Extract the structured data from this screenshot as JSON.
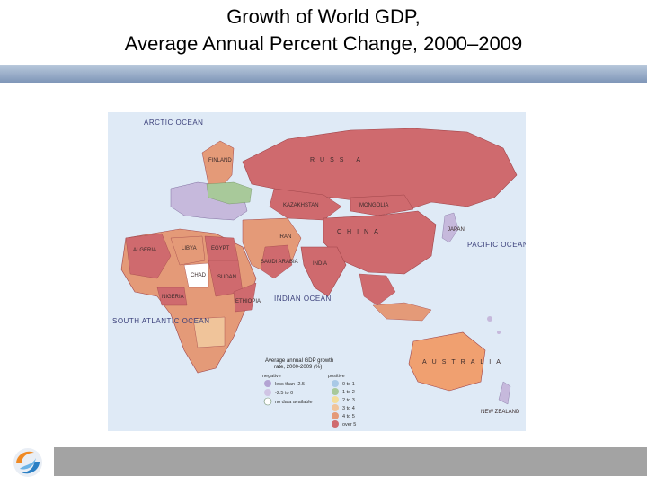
{
  "title": {
    "line1": "Growth of World GDP,",
    "line2": "Average Annual Percent Change, 2000–2009"
  },
  "colors": {
    "top_bar": "#8ea2c2",
    "bottom_bar": "#a3a3a3",
    "ocean": "#dfeaf6",
    "highest_growth": "#cf6a6e",
    "high_growth": "#e49a78",
    "mid_growth": "#f0c49a",
    "low_growth": "#c6b9dc",
    "positive_low": "#a9c9e6",
    "no_data": "#ffffff"
  },
  "map": {
    "oceans": [
      "ARCTIC OCEAN",
      "SOUTH ATLANTIC OCEAN",
      "INDIAN OCEAN",
      "PACIFIC OCEAN"
    ],
    "countries": [
      "RUSSIA",
      "CHINA",
      "MONGOLIA",
      "KAZAKHSTAN",
      "INDIA",
      "IRAN",
      "EGYPT",
      "LIBYA",
      "ALGERIA",
      "SUDAN",
      "CHAD",
      "SAUDI ARABIA",
      "JAPAN",
      "AUSTRALIA",
      "NEW ZEALAND",
      "ETHIOPIA",
      "NIGERIA",
      "FINLAND"
    ]
  },
  "legend": {
    "title_line1": "Average annual GDP growth",
    "title_line2": "rate, 2000-2009 (%)",
    "negative_header": "negative",
    "positive_header": "positive",
    "negative_items": [
      "less than -2.5",
      "-2.5 to 0",
      "no data available"
    ],
    "positive_items": [
      "0 to 1",
      "1 to 2",
      "2 to 3",
      "3 to 4",
      "4 to 5",
      "over 5"
    ]
  },
  "logo": {
    "icon": "swirl-logo-icon"
  }
}
